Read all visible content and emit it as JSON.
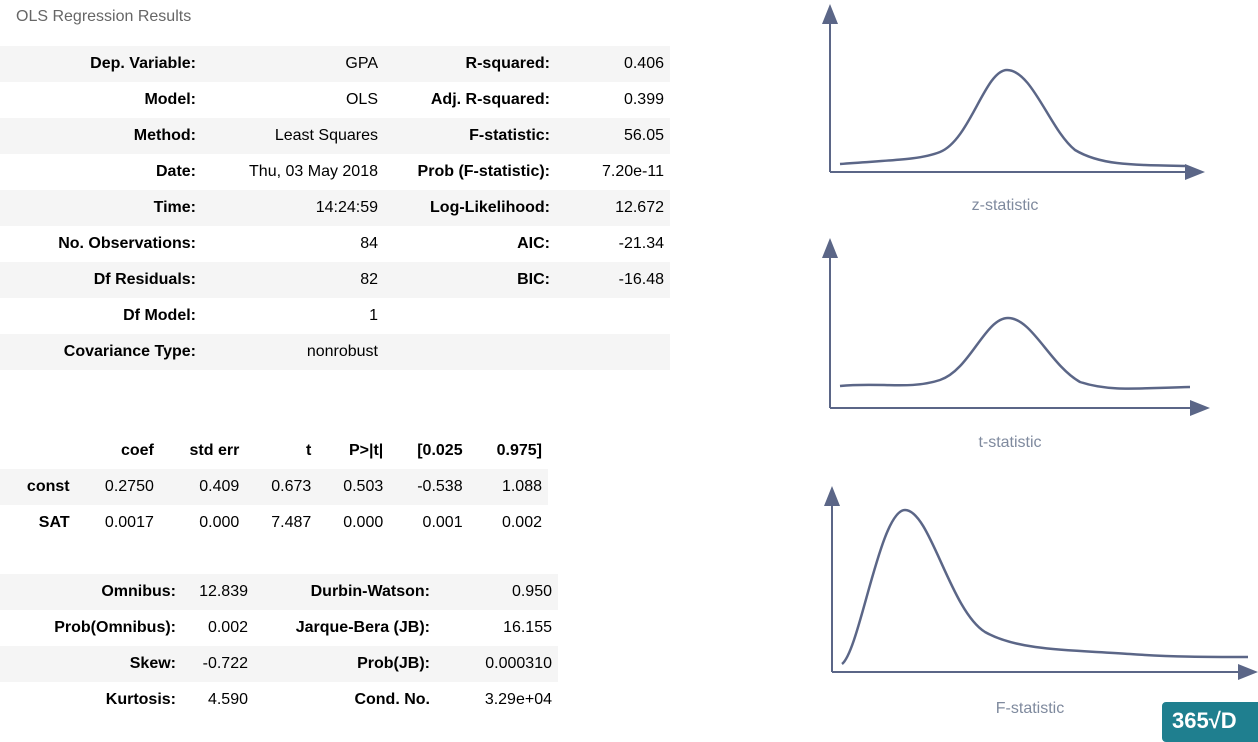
{
  "title": "OLS Regression Results",
  "summary": {
    "rows": [
      {
        "l1": "Dep. Variable:",
        "v1": "GPA",
        "l2": "R-squared:",
        "v2": "0.406"
      },
      {
        "l1": "Model:",
        "v1": "OLS",
        "l2": "Adj. R-squared:",
        "v2": "0.399"
      },
      {
        "l1": "Method:",
        "v1": "Least Squares",
        "l2": "F-statistic:",
        "v2": "56.05"
      },
      {
        "l1": "Date:",
        "v1": "Thu, 03 May 2018",
        "l2": "Prob (F-statistic):",
        "v2": "7.20e-11"
      },
      {
        "l1": "Time:",
        "v1": "14:24:59",
        "l2": "Log-Likelihood:",
        "v2": "12.672"
      },
      {
        "l1": "No. Observations:",
        "v1": "84",
        "l2": "AIC:",
        "v2": "-21.34"
      },
      {
        "l1": "Df Residuals:",
        "v1": "82",
        "l2": "BIC:",
        "v2": "-16.48"
      },
      {
        "l1": "Df Model:",
        "v1": "1",
        "l2": "",
        "v2": ""
      },
      {
        "l1": "Covariance Type:",
        "v1": "nonrobust",
        "l2": "",
        "v2": ""
      }
    ]
  },
  "coef_table": {
    "headers": [
      "",
      "coef",
      "std err",
      "t",
      "P>|t|",
      "[0.025",
      "0.975]"
    ],
    "rows": [
      [
        "const",
        "0.2750",
        "0.409",
        "0.673",
        "0.503",
        "-0.538",
        "1.088"
      ],
      [
        "SAT",
        "0.0017",
        "0.000",
        "7.487",
        "0.000",
        "0.001",
        "0.002"
      ]
    ]
  },
  "diagnostics": {
    "rows": [
      {
        "l1": "Omnibus:",
        "v1": "12.839",
        "l2": "Durbin-Watson:",
        "v2": "0.950"
      },
      {
        "l1": "Prob(Omnibus):",
        "v1": "0.002",
        "l2": "Jarque-Bera (JB):",
        "v2": "16.155"
      },
      {
        "l1": "Skew:",
        "v1": "-0.722",
        "l2": "Prob(JB):",
        "v2": "0.000310"
      },
      {
        "l1": "Kurtosis:",
        "v1": "4.590",
        "l2": "Cond. No.",
        "v2": "3.29e+04"
      }
    ]
  },
  "plots": {
    "z_label": "z-statistic",
    "t_label": "t-statistic",
    "f_label": "F-statistic",
    "curve_color": "#5b6687",
    "axis_color": "#5b6687"
  },
  "logo": {
    "text": "365√D"
  }
}
